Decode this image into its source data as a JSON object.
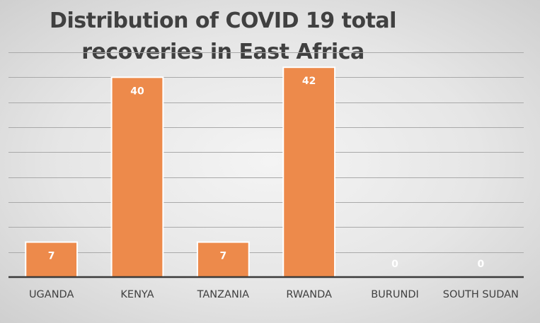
{
  "chart_data": {
    "type": "bar",
    "title": [
      "Distribution of COVID 19  total",
      "recoveries in East Africa"
    ],
    "categories": [
      "UGANDA",
      "KENYA",
      "TANZANIA",
      "RWANDA",
      "BURUNDI",
      "SOUTH SUDAN"
    ],
    "values": [
      7,
      40,
      7,
      42,
      0,
      0
    ],
    "data_labels": [
      "7",
      "40",
      "7",
      "42",
      "0",
      "0"
    ],
    "ylim": [
      0,
      45
    ],
    "grid_step": 5,
    "grid": true,
    "legend": "none",
    "colors": {
      "bar": "#ed8a4b",
      "label_on_bar": "#ffffff",
      "label_zero": "#ffffff",
      "text": "#404040"
    }
  }
}
